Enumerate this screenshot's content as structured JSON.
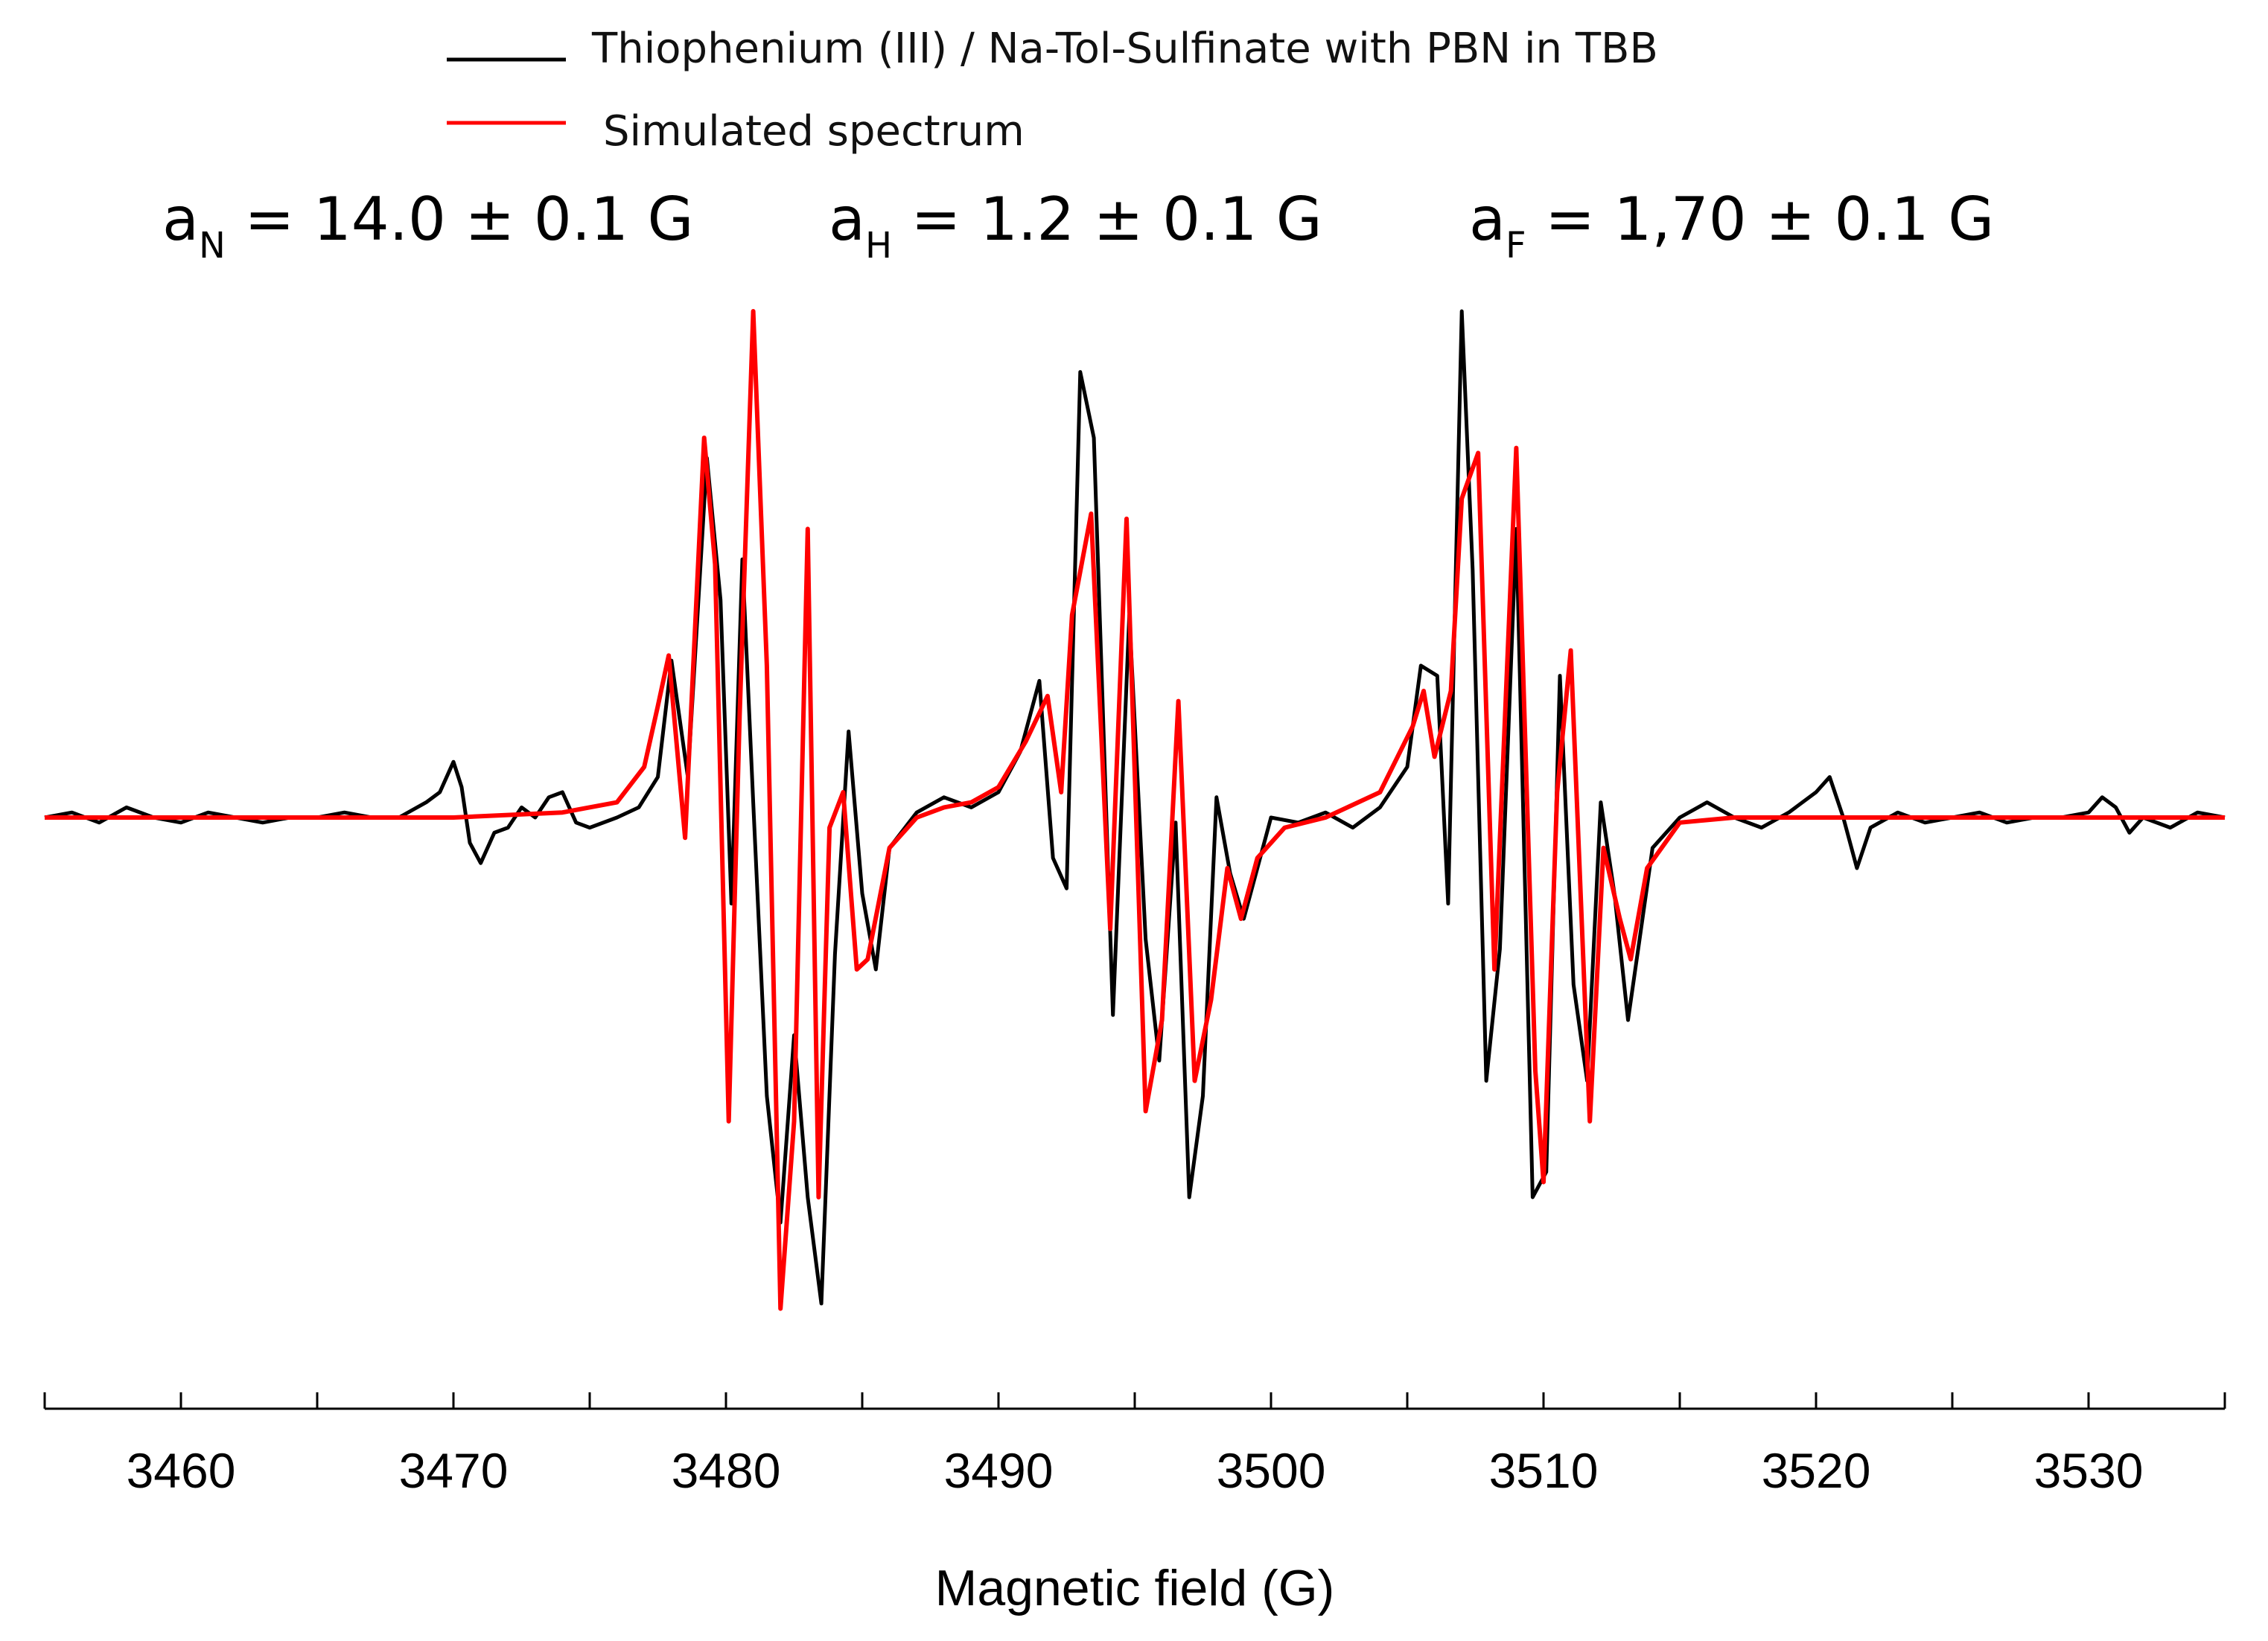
{
  "chart_data": {
    "type": "line",
    "title": "",
    "xlabel": "Magnetic field (G)",
    "ylabel": "",
    "xlim": [
      3455,
      3535
    ],
    "ylim": [
      -1.1,
      1.1
    ],
    "xticks": [
      3460,
      3470,
      3480,
      3490,
      3500,
      3510,
      3520,
      3530
    ],
    "minor_tick_step": 5,
    "grid": false,
    "legend_position": "top-left",
    "annotations": [
      {
        "symbol": "a",
        "subscript": "N",
        "text": " = 14.0 ±  0.1 G"
      },
      {
        "symbol": "a",
        "subscript": "H",
        "text": " = 1.2 ±  0.1 G"
      },
      {
        "symbol": "a",
        "subscript": "F",
        "text": " = 1,70 ±  0.1 G"
      }
    ],
    "series": [
      {
        "name": "Thiophenium (III) / Na-Tol-Sulfinate with PBN in TBB",
        "color": "#000000",
        "x": [
          3455,
          3456,
          3457,
          3458,
          3459,
          3460,
          3461,
          3462,
          3463,
          3464,
          3465,
          3466,
          3467,
          3468,
          3469,
          3469.5,
          3470,
          3470.3,
          3470.6,
          3471,
          3471.5,
          3472,
          3472.5,
          3473,
          3473.5,
          3474,
          3474.5,
          3475,
          3476,
          3476.8,
          3477.5,
          3478,
          3478.6,
          3479.3,
          3479.8,
          3480.2,
          3480.6,
          3481,
          3481.5,
          3482,
          3482.5,
          3483,
          3483.5,
          3484,
          3484.5,
          3485,
          3485.5,
          3486,
          3487,
          3488,
          3489,
          3490,
          3490.8,
          3491.5,
          3492,
          3492.5,
          3493,
          3493.5,
          3494.2,
          3494.8,
          3495.4,
          3495.9,
          3496.5,
          3497,
          3497.5,
          3498,
          3498.5,
          3499,
          3499.5,
          3500,
          3501,
          3502,
          3503,
          3504,
          3505,
          3505.5,
          3506.1,
          3506.5,
          3507,
          3507.4,
          3507.9,
          3508.4,
          3509,
          3509.6,
          3510.1,
          3510.6,
          3511.1,
          3511.6,
          3512.1,
          3512.6,
          3513.1,
          3513.5,
          3514,
          3515,
          3516,
          3517,
          3518,
          3519,
          3520,
          3520.5,
          3521,
          3521.5,
          3522,
          3523,
          3524,
          3525,
          3526,
          3527,
          3528,
          3529,
          3530,
          3530.5,
          3531,
          3531.5,
          3532,
          3533,
          3534,
          3535
        ],
        "y": [
          0.0,
          0.01,
          -0.01,
          0.02,
          0.0,
          -0.01,
          0.01,
          0.0,
          -0.01,
          0.0,
          0.0,
          0.01,
          0.0,
          0.0,
          0.03,
          0.05,
          0.11,
          0.06,
          -0.05,
          -0.09,
          -0.03,
          -0.02,
          0.02,
          0.0,
          0.04,
          0.05,
          -0.01,
          -0.02,
          0.0,
          0.02,
          0.08,
          0.31,
          0.08,
          0.71,
          0.43,
          -0.17,
          0.51,
          0.03,
          -0.55,
          -0.8,
          -0.43,
          -0.75,
          -0.96,
          -0.27,
          0.17,
          -0.15,
          -0.3,
          -0.06,
          0.01,
          0.04,
          0.02,
          0.05,
          0.13,
          0.27,
          -0.08,
          -0.14,
          0.88,
          0.75,
          -0.39,
          0.4,
          -0.24,
          -0.48,
          -0.01,
          -0.75,
          -0.55,
          0.04,
          -0.11,
          -0.2,
          -0.1,
          0.0,
          -0.01,
          0.01,
          -0.02,
          0.02,
          0.1,
          0.3,
          0.28,
          -0.17,
          1.0,
          0.49,
          -0.52,
          -0.26,
          0.57,
          -0.75,
          -0.7,
          0.28,
          -0.33,
          -0.52,
          0.03,
          -0.15,
          -0.4,
          -0.25,
          -0.06,
          0.0,
          0.03,
          0.0,
          -0.02,
          0.01,
          0.05,
          0.08,
          0.0,
          -0.1,
          -0.02,
          0.01,
          -0.01,
          0.0,
          0.01,
          -0.01,
          0.0,
          0.0,
          0.01,
          0.04,
          0.02,
          -0.03,
          0.0,
          -0.02,
          0.01,
          0.0
        ]
      },
      {
        "name": "Simulated spectrum",
        "color": "#ff0000",
        "x": [
          3455,
          3460,
          3465,
          3470,
          3474,
          3476,
          3477,
          3477.5,
          3477.9,
          3478.5,
          3479.2,
          3479.6,
          3480.1,
          3480.5,
          3481,
          3481.5,
          3482,
          3482.5,
          3483,
          3483.4,
          3483.8,
          3484.3,
          3484.8,
          3485.2,
          3486,
          3487,
          3488,
          3489,
          3490,
          3491,
          3491.8,
          3492.3,
          3492.7,
          3493.4,
          3494.1,
          3494.7,
          3495.4,
          3496,
          3496.6,
          3497.2,
          3497.8,
          3498.4,
          3498.9,
          3499.5,
          3500.5,
          3502,
          3504,
          3505.2,
          3505.6,
          3506,
          3506.6,
          3507,
          3507.6,
          3508.2,
          3509,
          3509.7,
          3510,
          3510.5,
          3511,
          3511.7,
          3512.2,
          3512.8,
          3513.2,
          3513.8,
          3515,
          3517,
          3520,
          3525,
          3530,
          3535
        ],
        "y": [
          0.0,
          0.0,
          0.0,
          0.0,
          0.01,
          0.03,
          0.1,
          0.22,
          0.32,
          -0.04,
          0.75,
          0.5,
          -0.6,
          0.2,
          1.0,
          0.3,
          -0.97,
          -0.6,
          0.57,
          -0.75,
          -0.02,
          0.05,
          -0.3,
          -0.28,
          -0.06,
          0.0,
          0.02,
          0.03,
          0.06,
          0.15,
          0.24,
          0.05,
          0.4,
          0.6,
          -0.22,
          0.59,
          -0.58,
          -0.4,
          0.23,
          -0.52,
          -0.36,
          -0.1,
          -0.2,
          -0.08,
          -0.02,
          0.0,
          0.05,
          0.18,
          0.25,
          0.12,
          0.25,
          0.63,
          0.72,
          -0.3,
          0.73,
          -0.5,
          -0.72,
          0.05,
          0.33,
          -0.6,
          -0.06,
          -0.2,
          -0.28,
          -0.1,
          -0.01,
          0.0,
          0.0,
          0.0,
          0.0,
          0.0
        ]
      }
    ]
  }
}
